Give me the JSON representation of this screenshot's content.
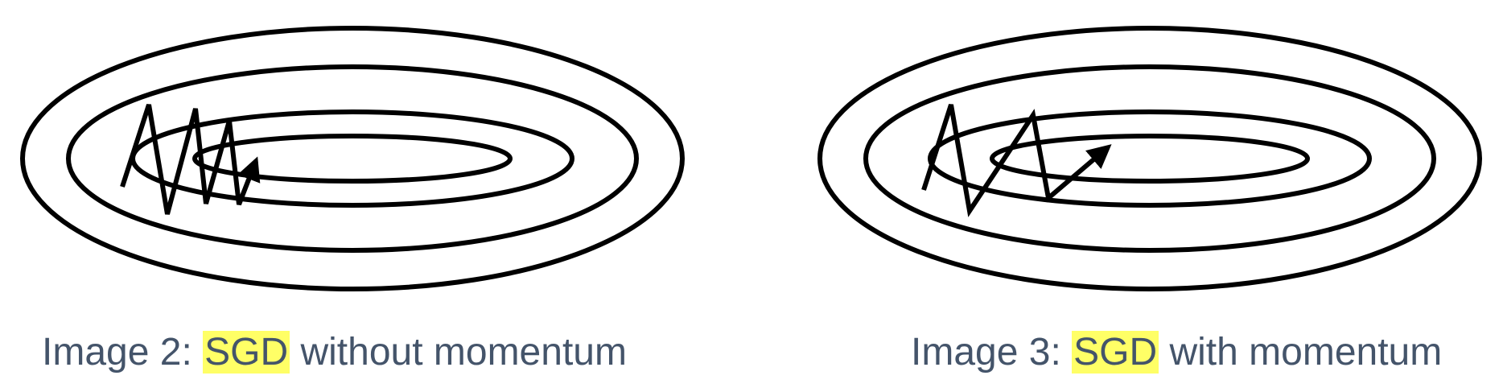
{
  "panels": [
    {
      "id": "without-momentum",
      "caption_prefix": "Image 2: ",
      "caption_highlight": "SGD",
      "caption_suffix": " without momentum"
    },
    {
      "id": "with-momentum",
      "caption_prefix": "Image 3: ",
      "caption_highlight": "SGD",
      "caption_suffix": " with momentum"
    }
  ],
  "colors": {
    "stroke": "#000000",
    "caption_text": "#44546a",
    "highlight": "#ffff66",
    "background": "#ffffff"
  }
}
